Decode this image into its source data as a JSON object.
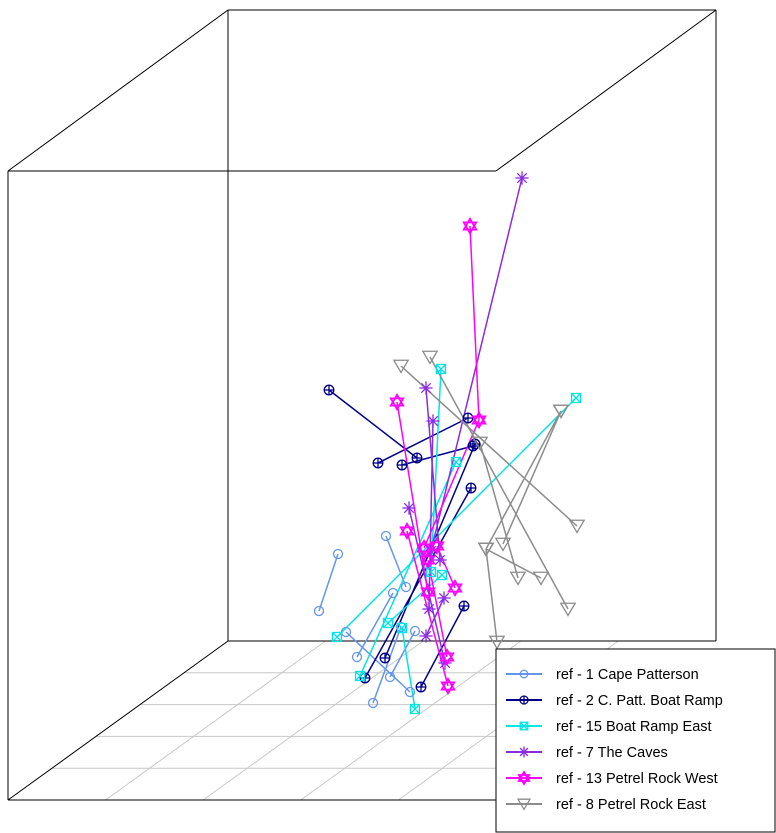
{
  "chart_data": {
    "type": "scatter",
    "projection": "3d",
    "grid": "floor-only",
    "legend_position": "bottom-right",
    "title": "",
    "x": [
      -5,
      5
    ],
    "y": [
      -5,
      5
    ],
    "z": [
      -5,
      5
    ],
    "series": [
      {
        "name": "ref - 1 Cape Patterson",
        "color": "#6495ED",
        "marker": "circle",
        "pairs": [
          [
            [
              338,
              554
            ],
            [
              319,
              611
            ]
          ],
          [
            [
              386,
              536
            ],
            [
              406,
              587
            ]
          ],
          [
            [
              393,
              593
            ],
            [
              357,
              657
            ]
          ],
          [
            [
              401,
              627
            ],
            [
              373,
              703
            ]
          ],
          [
            [
              346,
              632
            ],
            [
              410,
              692
            ]
          ],
          [
            [
              390,
              677
            ],
            [
              415,
              631
            ]
          ]
        ]
      },
      {
        "name": "ref - 2 C. Patt. Boat Ramp",
        "color": "#00008B",
        "marker": "circle-plus",
        "pairs": [
          [
            [
              329,
              390
            ],
            [
              417,
              458
            ]
          ],
          [
            [
              378,
              463
            ],
            [
              468,
              418
            ]
          ],
          [
            [
              402,
              465
            ],
            [
              473,
              446
            ]
          ],
          [
            [
              471,
              488
            ],
            [
              365,
              678
            ]
          ],
          [
            [
              464,
              606
            ],
            [
              421,
              687
            ]
          ],
          [
            [
              475,
              444
            ],
            [
              385,
              658
            ]
          ]
        ]
      },
      {
        "name": "ref - 15 Boat Ramp East",
        "color": "#00E5E5",
        "marker": "box-x",
        "pairs": [
          [
            [
              441,
              369
            ],
            [
              431,
              572
            ]
          ],
          [
            [
              576,
              398
            ],
            [
              337,
              637
            ]
          ],
          [
            [
              456,
              462
            ],
            [
              360,
              676
            ]
          ],
          [
            [
              402,
              628
            ],
            [
              415,
              709
            ]
          ],
          [
            [
              388,
              623
            ],
            [
              442,
              575
            ]
          ]
        ]
      },
      {
        "name": "ref - 7 The Caves",
        "color": "#8A2BE2",
        "marker": "asterisk",
        "pairs": [
          [
            [
              522,
              178
            ],
            [
              431,
              551
            ]
          ],
          [
            [
              426,
              388
            ],
            [
              440,
              560
            ]
          ],
          [
            [
              433,
              421
            ],
            [
              429,
              609
            ]
          ],
          [
            [
              409,
              508
            ],
            [
              445,
              663
            ]
          ],
          [
            [
              444,
              598
            ],
            [
              426,
              636
            ]
          ]
        ]
      },
      {
        "name": "ref - 13 Petrel Rock West",
        "color": "#FF00FF",
        "marker": "hexagram",
        "pairs": [
          [
            [
              470,
              226
            ],
            [
              479,
              420
            ]
          ],
          [
            [
              397,
              402
            ],
            [
              428,
              592
            ]
          ],
          [
            [
              407,
              531
            ],
            [
              448,
              686
            ]
          ],
          [
            [
              479,
              420
            ],
            [
              424,
              548
            ]
          ],
          [
            [
              437,
              546
            ],
            [
              455,
              588
            ]
          ],
          [
            [
              428,
              560
            ],
            [
              447,
              657
            ]
          ]
        ]
      },
      {
        "name": "ref - 8 Petrel Rock East",
        "color": "#8C8C8C",
        "marker": "triangle-down",
        "pairs": [
          [
            [
              401,
              366
            ],
            [
              577,
              526
            ]
          ],
          [
            [
              430,
              357
            ],
            [
              568,
              609
            ]
          ],
          [
            [
              561,
              411
            ],
            [
              486,
              549
            ]
          ],
          [
            [
              561,
              411
            ],
            [
              503,
              544
            ]
          ],
          [
            [
              480,
              443
            ],
            [
              518,
              578
            ]
          ],
          [
            [
              541,
              578
            ],
            [
              486,
              549
            ]
          ],
          [
            [
              486,
              549
            ],
            [
              497,
              642
            ]
          ]
        ]
      }
    ]
  },
  "axes": {
    "axis_color": "#000000",
    "floor_grid_color": "#C8C8C8",
    "legend_border_color": "#000000"
  }
}
